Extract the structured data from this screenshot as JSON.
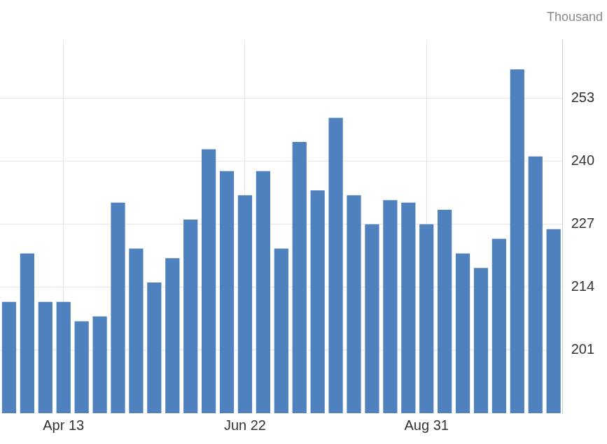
{
  "chart_data": {
    "type": "bar",
    "ylabel": "Thousand",
    "categories": [
      null,
      null,
      null,
      "Apr 13",
      null,
      null,
      null,
      null,
      null,
      null,
      null,
      null,
      null,
      "Jun 22",
      null,
      null,
      null,
      null,
      null,
      null,
      null,
      null,
      null,
      "Aug 31",
      null,
      null,
      null,
      null,
      null,
      null,
      null
    ],
    "values": [
      211,
      221,
      211,
      211,
      207,
      208,
      231.5,
      222,
      215,
      220,
      228,
      242.5,
      238,
      233,
      238,
      222,
      244,
      234,
      249,
      233,
      227,
      232,
      231.5,
      227,
      230,
      221,
      218,
      224,
      259,
      241,
      226
    ],
    "color": "#4e81bd",
    "ylim": [
      188,
      265
    ],
    "yticks": [
      201,
      214,
      227,
      240,
      253
    ],
    "grid": true
  }
}
